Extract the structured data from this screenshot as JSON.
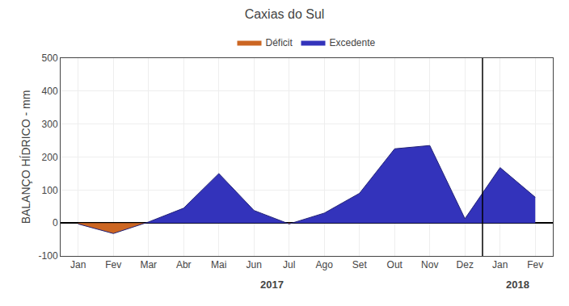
{
  "chart_data": {
    "type": "area",
    "title": "Caxias do Sul",
    "ylabel": "BALANÇO HÍDRICO - mm",
    "categories": [
      "Jan",
      "Fev",
      "Mar",
      "Abr",
      "Mai",
      "Jun",
      "Jul",
      "Ago",
      "Set",
      "Out",
      "Nov",
      "Dez",
      "Jan",
      "Fev"
    ],
    "values": [
      -3,
      -32,
      3,
      45,
      150,
      38,
      -3,
      30,
      90,
      225,
      235,
      13,
      168,
      78
    ],
    "series": [
      {
        "name": "Excedente",
        "color": "#3333BB"
      },
      {
        "name": "Déficit",
        "color": "#CC6622"
      }
    ],
    "ylim": [
      -100,
      500
    ],
    "yticks": [
      -100,
      0,
      100,
      200,
      300,
      400,
      500
    ],
    "annotations": [
      "2017",
      "2018"
    ],
    "grid": true,
    "legend": "top"
  }
}
